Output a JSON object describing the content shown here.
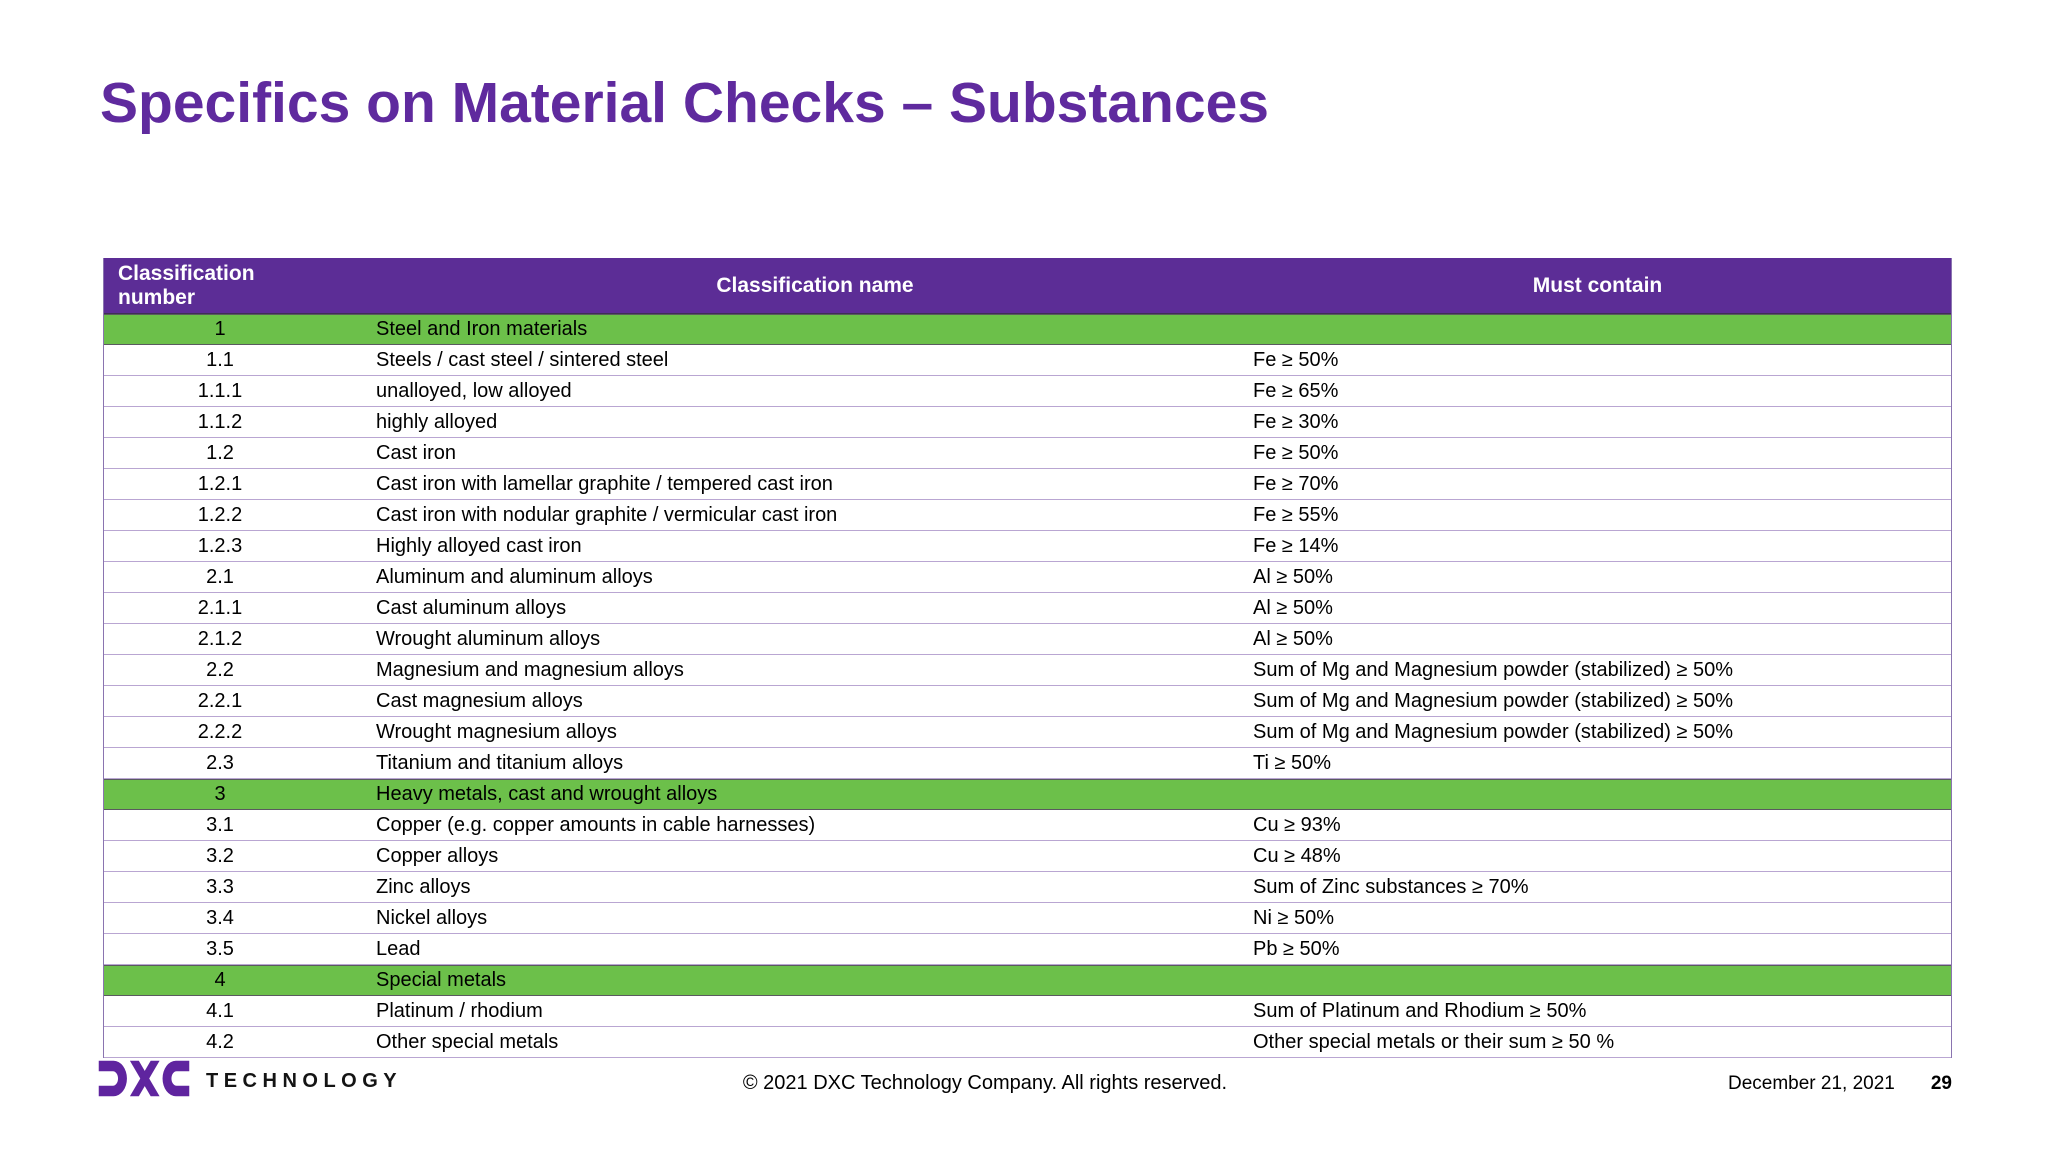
{
  "slide": {
    "title": "Specifics on Material Checks – Substances"
  },
  "table": {
    "headers": [
      "Classification number",
      "Classification name",
      "Must contain"
    ],
    "rows": [
      {
        "number": "1",
        "name": "Steel and Iron materials",
        "contain": "",
        "section": true
      },
      {
        "number": "1.1",
        "name": "Steels / cast steel / sintered steel",
        "contain": "Fe ≥ 50%",
        "section": false
      },
      {
        "number": "1.1.1",
        "name": "unalloyed, low alloyed",
        "contain": "Fe ≥ 65%",
        "section": false
      },
      {
        "number": "1.1.2",
        "name": "highly alloyed",
        "contain": "Fe ≥ 30%",
        "section": false
      },
      {
        "number": "1.2",
        "name": "Cast iron",
        "contain": "Fe ≥ 50%",
        "section": false
      },
      {
        "number": "1.2.1",
        "name": "Cast iron with lamellar graphite / tempered cast iron",
        "contain": "Fe ≥ 70%",
        "section": false
      },
      {
        "number": "1.2.2",
        "name": "Cast iron with nodular graphite / vermicular cast iron",
        "contain": "Fe ≥ 55%",
        "section": false
      },
      {
        "number": "1.2.3",
        "name": "Highly alloyed cast iron",
        "contain": "Fe ≥ 14%",
        "section": false
      },
      {
        "number": "2.1",
        "name": "Aluminum and aluminum alloys",
        "contain": "Al ≥ 50%",
        "section": false
      },
      {
        "number": "2.1.1",
        "name": "Cast aluminum alloys",
        "contain": "Al ≥ 50%",
        "section": false
      },
      {
        "number": "2.1.2",
        "name": "Wrought aluminum alloys",
        "contain": "Al ≥ 50%",
        "section": false
      },
      {
        "number": "2.2",
        "name": "Magnesium and magnesium alloys",
        "contain": "Sum of Mg and Magnesium powder (stabilized) ≥ 50%",
        "section": false
      },
      {
        "number": "2.2.1",
        "name": "Cast magnesium alloys",
        "contain": "Sum of Mg and Magnesium powder (stabilized) ≥ 50%",
        "section": false
      },
      {
        "number": "2.2.2",
        "name": "Wrought magnesium alloys",
        "contain": "Sum of Mg and Magnesium powder (stabilized) ≥ 50%",
        "section": false
      },
      {
        "number": "2.3",
        "name": "Titanium and titanium alloys",
        "contain": "Ti ≥ 50%",
        "section": false
      },
      {
        "number": "3",
        "name": "Heavy metals, cast and wrought alloys",
        "contain": "",
        "section": true
      },
      {
        "number": "3.1",
        "name": "Copper (e.g. copper amounts in cable harnesses)",
        "contain": "Cu ≥ 93%",
        "section": false
      },
      {
        "number": "3.2",
        "name": "Copper alloys",
        "contain": "Cu ≥ 48%",
        "section": false
      },
      {
        "number": "3.3",
        "name": "Zinc alloys",
        "contain": "Sum of Zinc substances ≥ 70%",
        "section": false
      },
      {
        "number": "3.4",
        "name": "Nickel alloys",
        "contain": "Ni ≥ 50%",
        "section": false
      },
      {
        "number": "3.5",
        "name": "Lead",
        "contain": "Pb ≥ 50%",
        "section": false
      },
      {
        "number": "4",
        "name": "Special metals",
        "contain": "",
        "section": true
      },
      {
        "number": "4.1",
        "name": "Platinum / rhodium",
        "contain": "Sum of Platinum and Rhodium ≥ 50%",
        "section": false
      },
      {
        "number": "4.2",
        "name": "Other special metals",
        "contain": "Other special metals or their sum ≥ 50 %",
        "section": false
      }
    ]
  },
  "footer": {
    "brand": "TECHNOLOGY",
    "copyright": "© 2021 DXC Technology Company. All rights reserved.",
    "date": "December 21, 2021",
    "page_number": "29"
  },
  "colors": {
    "title_purple": "#5F2A9E",
    "header_purple": "#5C2D96",
    "section_green": "#6CC04A",
    "row_line_lavender": "#B9A6D2",
    "logo_purple": "#5F249F"
  }
}
